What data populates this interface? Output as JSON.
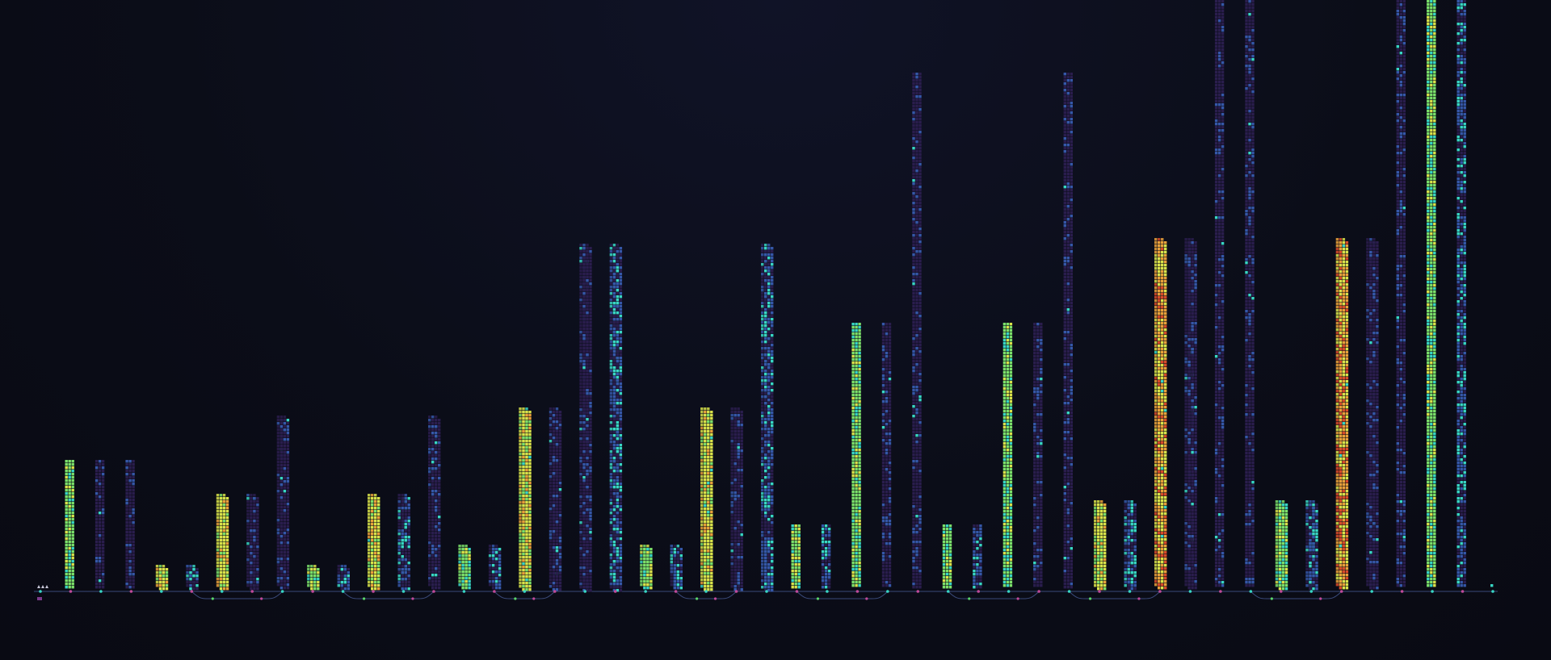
{
  "view": {
    "background": "#0b0d18",
    "connector_color": "#3a4a7a",
    "palette": {
      "dark": "#2a1d4d",
      "mid": "#3557a8",
      "bright": "#38d6c4",
      "green": "#7be06a",
      "yellow": "#d8e24a",
      "orange": "#e8a03a",
      "red": "#d84a2a"
    }
  },
  "layers": [
    {
      "kind": "input",
      "height": 2,
      "style": "teal"
    },
    {
      "kind": "tensor",
      "height": 160,
      "style": "green",
      "double": false
    },
    {
      "kind": "tensor",
      "height": 160,
      "style": "dark",
      "double": false
    },
    {
      "kind": "tensor",
      "height": 160,
      "style": "dark",
      "double": false
    },
    {
      "kind": "tensor",
      "height": 30,
      "style": "yellow",
      "double": true
    },
    {
      "kind": "tensor",
      "height": 30,
      "style": "blue",
      "double": true
    },
    {
      "kind": "tensor",
      "height": 118,
      "style": "yellow",
      "double": true
    },
    {
      "kind": "tensor",
      "height": 118,
      "style": "dark",
      "double": true
    },
    {
      "kind": "tensor",
      "height": 215,
      "style": "dark",
      "double": true
    },
    {
      "kind": "tensor",
      "height": 30,
      "style": "green",
      "double": true
    },
    {
      "kind": "tensor",
      "height": 30,
      "style": "blue",
      "double": true
    },
    {
      "kind": "tensor",
      "height": 118,
      "style": "yellow",
      "double": true
    },
    {
      "kind": "tensor",
      "height": 118,
      "style": "blue",
      "double": true
    },
    {
      "kind": "tensor",
      "height": 215,
      "style": "dark",
      "double": true
    },
    {
      "kind": "tensor",
      "height": 55,
      "style": "green",
      "double": true
    },
    {
      "kind": "tensor",
      "height": 55,
      "style": "blue",
      "double": true
    },
    {
      "kind": "tensor",
      "height": 225,
      "style": "yellow",
      "double": true
    },
    {
      "kind": "tensor",
      "height": 225,
      "style": "dark",
      "double": true
    },
    {
      "kind": "tensor",
      "height": 428,
      "style": "dark",
      "double": true
    },
    {
      "kind": "tensor",
      "height": 428,
      "style": "blue",
      "double": true
    },
    {
      "kind": "tensor",
      "height": 55,
      "style": "green",
      "double": true
    },
    {
      "kind": "tensor",
      "height": 55,
      "style": "blue",
      "double": true
    },
    {
      "kind": "tensor",
      "height": 225,
      "style": "yellow",
      "double": true
    },
    {
      "kind": "tensor",
      "height": 225,
      "style": "dark",
      "double": true
    },
    {
      "kind": "tensor",
      "height": 428,
      "style": "blue",
      "double": true
    },
    {
      "kind": "tensor",
      "height": 80,
      "style": "green",
      "double": false
    },
    {
      "kind": "tensor",
      "height": 80,
      "style": "blue",
      "double": false
    },
    {
      "kind": "tensor",
      "height": 330,
      "style": "green",
      "double": false
    },
    {
      "kind": "tensor",
      "height": 330,
      "style": "dark",
      "double": false
    },
    {
      "kind": "tensor",
      "height": 640,
      "style": "dark",
      "double": false
    },
    {
      "kind": "tensor",
      "height": 80,
      "style": "green",
      "double": false
    },
    {
      "kind": "tensor",
      "height": 80,
      "style": "blue",
      "double": false
    },
    {
      "kind": "tensor",
      "height": 330,
      "style": "green",
      "double": false
    },
    {
      "kind": "tensor",
      "height": 330,
      "style": "dark",
      "double": false
    },
    {
      "kind": "tensor",
      "height": 640,
      "style": "dark",
      "double": false
    },
    {
      "kind": "tensor",
      "height": 110,
      "style": "yellow",
      "double": true
    },
    {
      "kind": "tensor",
      "height": 110,
      "style": "blue",
      "double": true
    },
    {
      "kind": "tensor",
      "height": 435,
      "style": "orange",
      "double": true
    },
    {
      "kind": "tensor",
      "height": 435,
      "style": "dark",
      "double": true
    },
    {
      "kind": "tensor",
      "height": 730,
      "style": "dark",
      "double": false
    },
    {
      "kind": "tensor",
      "height": 730,
      "style": "dark",
      "double": false
    },
    {
      "kind": "tensor",
      "height": 110,
      "style": "green",
      "double": true
    },
    {
      "kind": "tensor",
      "height": 110,
      "style": "blue",
      "double": true
    },
    {
      "kind": "tensor",
      "height": 435,
      "style": "orange",
      "double": true
    },
    {
      "kind": "tensor",
      "height": 435,
      "style": "dark",
      "double": true
    },
    {
      "kind": "tensor",
      "height": 730,
      "style": "dark",
      "double": false
    },
    {
      "kind": "tensor",
      "height": 730,
      "style": "green",
      "double": false
    },
    {
      "kind": "tensor",
      "height": 730,
      "style": "blue",
      "double": false
    },
    {
      "kind": "output",
      "height": 6,
      "style": "teal"
    }
  ],
  "skip_arcs": [
    [
      5,
      8
    ],
    [
      10,
      13
    ],
    [
      15,
      17
    ],
    [
      21,
      23
    ],
    [
      25,
      28
    ],
    [
      30,
      33
    ],
    [
      34,
      37
    ],
    [
      40,
      43
    ]
  ]
}
